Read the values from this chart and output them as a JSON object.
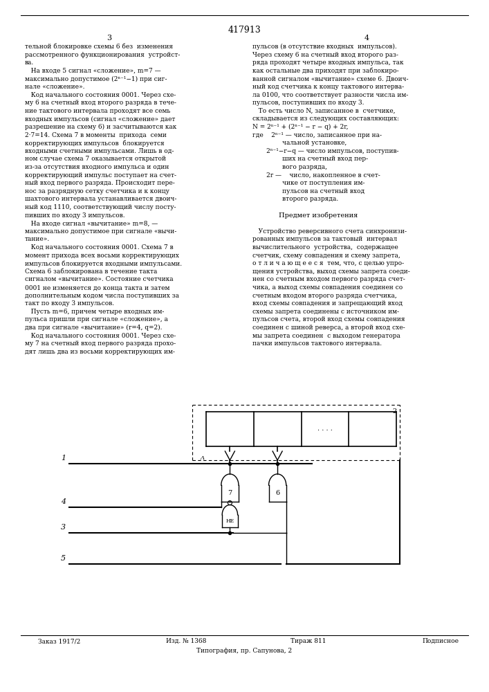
{
  "page_number": "417913",
  "col_numbers": [
    "3",
    "4"
  ],
  "left_col_text": [
    "тельной блокировке схемы 6 без  изменения",
    "рассмотренного функционирования  устройст-",
    "ва.",
    "   На входе 5 сигнал «сложение», m=7 —",
    "максимально допустимое (2ⁿ⁻¹−1) при сиг-",
    "нале «сложение».",
    "   Код начального состояния 0001. Через схе-",
    "му 6 на счетный вход второго разряда в тече-",
    "ние тактового интервала проходят все семь",
    "входных импульсов (сигнал «сложение» дает",
    "разрешение на схему 6) и засчитываются как",
    "2·7=14. Схема 7 в моменты  прихода  семи",
    "корректирующих импульсов  блокируется",
    "входными счетными импульсами. Лишь в од-",
    "ном случае схема 7 оказывается открытой",
    "из-за отсутствия входного импульса и один",
    "корректирующий импульс поступает на счет-",
    "ный вход первого разряда. Происходит пере-",
    "нос за разрядную сетку счетчика и к концу",
    "шахтового интервала устанавливается двоич-",
    "ный код 1110, соответствующий числу посту-",
    "пивших по входу 3 импульсов.",
    "   На входе сигнал «вычитание» m=8, —",
    "максимально допустимое при сигнале «вычи-",
    "тание».",
    "   Код начального состояния 0001. Схема 7 в",
    "момент прихода всех восьми корректирующих",
    "импульсов блокируется входными импульсами.",
    "Схема 6 заблокирована в течение такта",
    "сигналом «вычитание». Состояние счетчика",
    "0001 не изменяется до конца такта и затем",
    "дополнительным кодом числа поступивших за",
    "такт по входу 3 импульсов.",
    "   Пусть m=6, причем четыре входных им-",
    "пульса пришли при сигнале «сложение», а",
    "два при сигнале «вычитание» (r=4, q=2).",
    "   Код начального состояния 0001. Через схе-",
    "му 7 на счетный вход первого разряда прохо-",
    "дят лишь два из восьми корректирующих им-"
  ],
  "right_col_text_lines": [
    "пульсов (в отсутствие входных  импульсов).",
    "Через схему 6 на счетный вход второго раз-",
    "ряда проходят четыре входных импульса, так",
    "как остальные два приходят при заблокиро-",
    "ванной сигналом «вычитание» схеме 6. Двоич-",
    "ный код счетчика к концу тактового интерва-",
    "ла 0100, что соответствует разности числа им-",
    "пульсов, поступивших по входу 3.",
    "   То есть число N, записанное в  счетчике,",
    "складывается из следующих составляющих:",
    "N = 2ⁿ⁻¹ + (2ⁿ⁻¹ − r − q) + 2r,",
    "где    2ⁿ⁻¹ — число, записанное при на-",
    "               чальной установке,",
    "       2ⁿ⁻¹−r−q — число импульсов, поступив-",
    "               ших на счетный вход пер-",
    "               вого разряда,",
    "       2r —    число, накопленное в счет-",
    "               чике от поступления им-",
    "               пульсов на счетный вход",
    "               второго разряда.",
    "",
    "Предмет изобретения",
    "",
    "   Устройство реверсивного счета синхронизи-",
    "рованных импульсов за тактовый  интервал",
    "вычислительного  устройства,  содержащее",
    "счетчик, схему совпадения и схему запрета,",
    "о т л и ч а ю щ е е с я  тем, что, с целью упро-",
    "щения устройства, выход схемы запрета соеди-",
    "нен со счетным входом первого разряда счет-",
    "чика, а выход схемы совпадения соединен со",
    "счетным входом второго разряда счетчика,",
    "вход схемы совпадения и запрещающий вход",
    "схемы запрета соединены с источником им-",
    "пульсов счета, второй вход схемы совпадения",
    "соединен с шиной реверса, а второй вход схе-",
    "мы запрета соединен  с выходом генератора",
    "пачки импульсов тактового интервала."
  ],
  "footer1": "Заказ 1917/2",
  "footer2": "Изд. № 1368",
  "footer3": "Тираж 811",
  "footer4": "Подписное",
  "footer5": "Типография, пр. Сапунова, 2",
  "line_numbers": [
    "5",
    "1",
    "4",
    "3",
    "5"
  ],
  "gate_labels": [
    "7",
    "6",
    "НЕ"
  ],
  "block_label": "2"
}
